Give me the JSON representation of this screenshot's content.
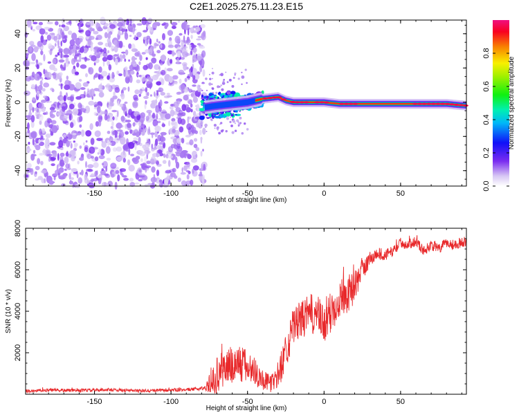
{
  "title": "C2E1.2025.275.11.23.E15",
  "chart_data": [
    {
      "type": "heatmap",
      "name": "spectrogram",
      "xlabel": "Height of straight line (km)",
      "ylabel": "Frequency (Hz)",
      "xlim": [
        -195,
        93
      ],
      "ylim": [
        -49,
        48
      ],
      "xticks": [
        -150,
        -100,
        -50,
        0,
        50
      ],
      "yticks": [
        -40,
        -20,
        0,
        20,
        40
      ],
      "noise_region_x": [
        -195,
        -78
      ],
      "signal_track": {
        "x": [
          -78,
          -70,
          -60,
          -50,
          -40,
          -30,
          -25,
          -20,
          -10,
          0,
          10,
          20,
          30,
          40,
          50,
          60,
          70,
          80,
          93
        ],
        "freq_hz": [
          -3,
          -2,
          -1,
          0,
          2,
          3,
          1,
          0,
          0,
          0,
          -1,
          -1,
          -1,
          -1,
          -1,
          -1,
          -1,
          -1,
          -2
        ]
      },
      "colorbar": {
        "label": "Normalized spectral amplitude",
        "range": [
          0.0,
          1.0
        ],
        "ticks": [
          "0.0",
          "0.2",
          "0.4",
          "0.6",
          "0.8"
        ]
      }
    },
    {
      "type": "line",
      "name": "snr",
      "xlabel": "Height of straight line (km)",
      "ylabel": "SNR (10 * v/v)",
      "xlim": [
        -195,
        93
      ],
      "ylim": [
        0,
        8000
      ],
      "xticks": [
        -150,
        -100,
        -50,
        0,
        50
      ],
      "yticks": [
        2000,
        4000,
        6000,
        8000
      ],
      "color": "#e8282a",
      "series": [
        {
          "name": "SNR",
          "x": [
            -195,
            -180,
            -160,
            -140,
            -120,
            -100,
            -85,
            -78,
            -74,
            -70,
            -65,
            -60,
            -55,
            -50,
            -45,
            -40,
            -35,
            -30,
            -25,
            -20,
            -15,
            -10,
            -5,
            0,
            5,
            10,
            15,
            20,
            25,
            30,
            35,
            40,
            45,
            50,
            55,
            60,
            65,
            70,
            75,
            80,
            85,
            93
          ],
          "y": [
            150,
            200,
            180,
            220,
            160,
            200,
            240,
            300,
            500,
            900,
            1300,
            1400,
            1500,
            1300,
            1100,
            700,
            500,
            900,
            2100,
            3300,
            3600,
            3800,
            3900,
            3300,
            4000,
            4700,
            4800,
            5200,
            6000,
            6500,
            6800,
            6700,
            6900,
            7300,
            7200,
            7400,
            6900,
            7200,
            7000,
            7300,
            7200,
            7400
          ],
          "noise_amplitude": [
            80,
            80,
            80,
            80,
            80,
            80,
            80,
            100,
            500,
            900,
            900,
            1000,
            1000,
            800,
            700,
            500,
            400,
            700,
            900,
            900,
            900,
            1000,
            1000,
            900,
            1100,
            1000,
            900,
            800,
            500,
            400,
            300,
            300,
            250,
            250,
            250,
            250,
            250,
            250,
            250,
            250,
            250,
            250
          ]
        }
      ]
    }
  ]
}
